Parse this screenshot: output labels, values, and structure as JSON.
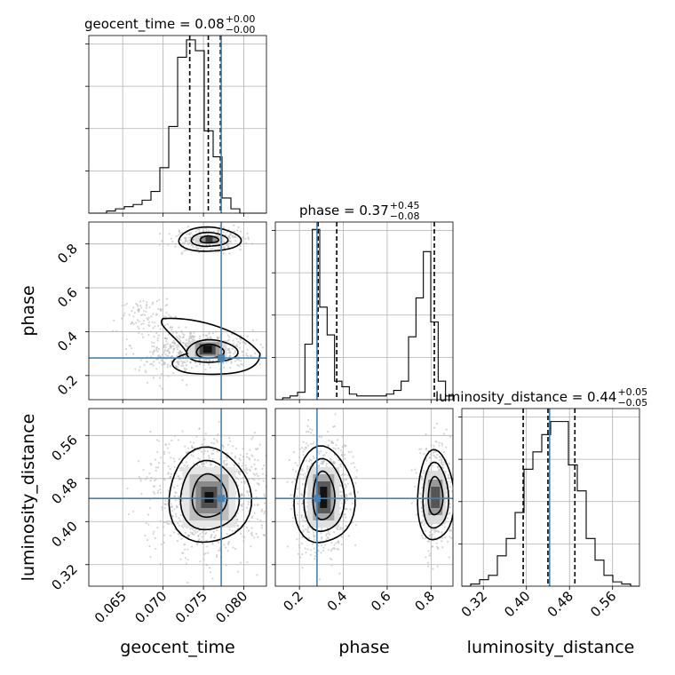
{
  "chart_data": {
    "type": "corner",
    "parameters": [
      {
        "name": "geocent_time",
        "axis_label": "geocent_time",
        "range": [
          0.0608,
          0.0828
        ],
        "ticks": [
          0.065,
          0.07,
          0.075,
          0.08
        ],
        "tick_labels": [
          "0.065",
          "0.070",
          "0.075",
          "0.080"
        ],
        "truth": 0.0772,
        "quantiles": [
          0.0733,
          0.0756,
          0.0771
        ],
        "title": {
          "label": "geocent_time",
          "median": "0.08",
          "plus": "+0.00",
          "minus": "−0.00"
        },
        "hist_bins": [
          0,
          0,
          1,
          2,
          3,
          4,
          6,
          10,
          21,
          40,
          72,
          80,
          75,
          38,
          26,
          7,
          2,
          0,
          0,
          0
        ],
        "hist_max": 82
      },
      {
        "name": "phase",
        "axis_label": "phase",
        "range": [
          0.09,
          0.9
        ],
        "ticks": [
          0.2,
          0.4,
          0.6,
          0.8
        ],
        "tick_labels": [
          "0.2",
          "0.4",
          "0.6",
          "0.8"
        ],
        "truth": 0.28,
        "quantiles": [
          0.285,
          0.37,
          0.815
        ],
        "title": {
          "label": "phase",
          "median": "0.37",
          "plus": "+0.45",
          "minus": "−0.08"
        },
        "hist_bins": [
          0,
          1,
          2,
          4,
          30,
          92,
          50,
          35,
          10,
          7,
          3,
          2,
          2,
          2,
          2,
          3,
          5,
          10,
          34,
          55,
          80,
          42,
          10,
          2
        ],
        "hist_max": 96
      },
      {
        "name": "luminosity_distance",
        "axis_label": "luminosity_distance",
        "range": [
          0.28,
          0.61
        ],
        "ticks": [
          0.32,
          0.4,
          0.48,
          0.56
        ],
        "tick_labels": [
          "0.32",
          "0.40",
          "0.48",
          "0.56"
        ],
        "truth": 0.443,
        "quantiles": [
          0.394,
          0.44,
          0.49
        ],
        "title": {
          "label": "luminosity_distance",
          "median": "0.44",
          "plus": "+0.05",
          "minus": "−0.05"
        },
        "hist_bins": [
          0,
          1,
          3,
          5,
          14,
          22,
          34,
          54,
          62,
          70,
          76,
          76,
          56,
          44,
          22,
          12,
          5,
          2,
          1,
          0
        ],
        "hist_max": 82
      }
    ],
    "colors": {
      "truth": "#4682b4",
      "contour": "#000000",
      "points": "#b5b5b5",
      "grid": "#b0b0b0"
    }
  }
}
